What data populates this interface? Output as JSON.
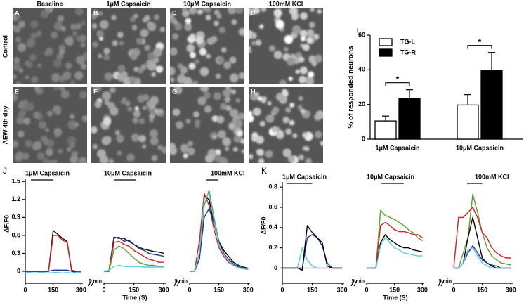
{
  "images": {
    "columns": [
      "Baseline",
      "1μM Capsaicin",
      "10μM Capsaicin",
      "100mM KCl"
    ],
    "rows": [
      "Control",
      "AEW 4th day"
    ],
    "panels": [
      "A",
      "B",
      "C",
      "D",
      "E",
      "F",
      "G",
      "H"
    ]
  },
  "chart_data": [
    {
      "type": "bar",
      "panel": "I",
      "categories": [
        "1μM Capsaicin",
        "10μM Capsaicin"
      ],
      "ylabel": "% of responded neurons",
      "ylim": [
        0,
        60
      ],
      "yticks": [
        0,
        20,
        40,
        60
      ],
      "legend": "top-left",
      "series": [
        {
          "name": "TG-L",
          "color": "#ffffff",
          "values": [
            10.5,
            19.7
          ],
          "errors": [
            2.8,
            6
          ]
        },
        {
          "name": "TG-R",
          "color": "#000000",
          "values": [
            23.5,
            39.5
          ],
          "errors": [
            5,
            10.5
          ]
        }
      ],
      "annotations": [
        "*",
        "*"
      ]
    },
    {
      "type": "line",
      "panel": "J",
      "ylabel": "ΔF/F0",
      "xlabel": "Time (S)",
      "ylim": [
        -0.2,
        1.55
      ],
      "yticks": [
        0,
        0.3,
        0.6,
        0.9,
        1.2,
        1.5
      ],
      "xlim": [
        0,
        310
      ],
      "xticks": [
        0,
        150,
        300
      ],
      "segments": [
        {
          "label": "1μM Capsaicin",
          "stimulus": [
            30,
            150
          ],
          "x": [
            0,
            25,
            50,
            75,
            100,
            125,
            150,
            175,
            200,
            225,
            250,
            275,
            300
          ],
          "series": [
            {
              "color": "#000000",
              "values": [
                0,
                0,
                0,
                0,
                0,
                0,
                0.68,
                0.62,
                0.55,
                0.5,
                0,
                -0.02,
                -0.02
              ]
            },
            {
              "color": "#d62020",
              "values": [
                0,
                0,
                0,
                0,
                0,
                0,
                0.6,
                0.6,
                0.52,
                0.48,
                0.02,
                0,
                0
              ]
            },
            {
              "color": "#1f3a8a",
              "values": [
                0,
                0,
                0,
                0,
                0,
                0,
                0.02,
                0.02,
                0.02,
                0.02,
                0,
                0,
                0
              ]
            },
            {
              "color": "#5bc8e0",
              "values": [
                -0.02,
                -0.02,
                -0.03,
                -0.02,
                -0.02,
                -0.03,
                -0.02,
                -0.02,
                -0.03,
                -0.02,
                -0.03,
                -0.02,
                -0.02
              ]
            }
          ]
        },
        {
          "label": "10μM Capsaicin",
          "scale_label": "5 min",
          "stimulus": [
            50,
            160
          ],
          "x": [
            0,
            25,
            50,
            75,
            100,
            125,
            150,
            175,
            200,
            225,
            250,
            275,
            300
          ],
          "series": [
            {
              "color": "#000000",
              "values": [
                0,
                0,
                0.57,
                0.55,
                0.55,
                0.5,
                0.45,
                0.4,
                0.37,
                0.35,
                0.33,
                0.32,
                0.3
              ]
            },
            {
              "color": "#1f3a8a",
              "values": [
                0,
                0,
                0.55,
                0.57,
                0.5,
                0.52,
                0.45,
                0.38,
                0.35,
                0.3,
                0.28,
                0.27,
                0.25
              ]
            },
            {
              "color": "#d62020",
              "values": [
                0,
                0,
                0.48,
                0.5,
                0.45,
                0.42,
                0.35,
                0.3,
                0.25,
                0.2,
                0.18,
                0.15,
                0.15
              ]
            },
            {
              "color": "#5aa02c",
              "values": [
                0,
                0,
                0.35,
                0.42,
                0.38,
                0.3,
                0.22,
                0.15,
                0.12,
                0.1,
                0.1,
                0.08,
                0.08
              ]
            },
            {
              "color": "#5bc8e0",
              "values": [
                0,
                0.02,
                0.08,
                0.1,
                0.08,
                0.08,
                0.08,
                0.08,
                0.07,
                0.07,
                0.07,
                0.07,
                0.07
              ]
            }
          ]
        },
        {
          "label": "100mM KCl",
          "scale_label": "5 min",
          "stimulus": [
            85,
            145
          ],
          "x": [
            0,
            25,
            50,
            75,
            100,
            125,
            150,
            175,
            200,
            225,
            250,
            275,
            300
          ],
          "series": [
            {
              "color": "#000000",
              "values": [
                0,
                0,
                0.3,
                1.25,
                1.2,
                0.8,
                0.5,
                0.35,
                0.25,
                0.15,
                0.1,
                0.07,
                0.05
              ]
            },
            {
              "color": "#d62020",
              "values": [
                0,
                0,
                0.5,
                1.3,
                1.1,
                0.7,
                0.4,
                0.25,
                0.15,
                0.1,
                0.07,
                0.05,
                0.04
              ]
            },
            {
              "color": "#5aa02c",
              "values": [
                0,
                0,
                0.2,
                1.1,
                1.35,
                0.9,
                0.5,
                0.3,
                0.2,
                0.12,
                0.08,
                0.05,
                0.04
              ]
            },
            {
              "color": "#1f3a8a",
              "values": [
                0,
                0,
                0.2,
                0.9,
                1.05,
                0.8,
                0.5,
                0.3,
                0.2,
                0.12,
                0.07,
                0.05,
                0.03
              ]
            },
            {
              "color": "#5bc8e0",
              "values": [
                0,
                0,
                0.3,
                1.2,
                1.3,
                0.85,
                0.45,
                0.28,
                0.18,
                0.1,
                0.06,
                0.04,
                0.03
              ]
            }
          ]
        }
      ]
    },
    {
      "type": "line",
      "panel": "K",
      "ylabel": "ΔF/F0",
      "xlabel": "Time (S)",
      "ylim": [
        -0.15,
        0.85
      ],
      "yticks": [
        0,
        0.2,
        0.4,
        0.6,
        0.8
      ],
      "xlim": [
        0,
        310
      ],
      "xticks": [
        0,
        150,
        300
      ],
      "segments": [
        {
          "label": "1μM Capsaicin",
          "stimulus": [
            20,
            150
          ],
          "x": [
            0,
            25,
            50,
            75,
            100,
            125,
            150,
            175,
            200,
            225,
            250,
            275,
            300
          ],
          "series": [
            {
              "color": "#e69a1a",
              "values": [
                0,
                0,
                0,
                0,
                0,
                0,
                0,
                0,
                0,
                0,
                0,
                0,
                0
              ]
            },
            {
              "color": "#5bc8e0",
              "values": [
                0,
                0,
                0,
                0,
                0.2,
                0.08,
                0.02,
                0,
                0,
                0,
                0,
                0,
                0
              ]
            },
            {
              "color": "#1f3a8a",
              "values": [
                0,
                0,
                0,
                0,
                0,
                0.3,
                0.33,
                0.3,
                0.22,
                0.05,
                0,
                0,
                0
              ]
            },
            {
              "color": "#000000",
              "values": [
                0,
                0,
                0,
                0,
                -0.02,
                0.42,
                0.35,
                0.3,
                0.25,
                0.02,
                0,
                0,
                0
              ]
            }
          ]
        },
        {
          "label": "10μM Capsaicin",
          "scale_label": "5 min",
          "stimulus": [
            80,
            200
          ],
          "x": [
            0,
            25,
            50,
            75,
            100,
            125,
            150,
            175,
            200,
            225,
            250,
            275,
            300
          ],
          "series": [
            {
              "color": "#5aa02c",
              "values": [
                0,
                0,
                0,
                0.57,
                0.52,
                0.5,
                0.48,
                0.45,
                0.42,
                0.38,
                0.35,
                0.3,
                0.27
              ]
            },
            {
              "color": "#d62020",
              "values": [
                0,
                0,
                0,
                0.42,
                0.45,
                0.42,
                0.38,
                0.36,
                0.36,
                0.35,
                0.33,
                0.33,
                0.3
              ]
            },
            {
              "color": "#000000",
              "values": [
                0,
                0,
                0,
                0.25,
                0.33,
                0.28,
                0.25,
                0.22,
                0.2,
                0.2,
                0.18,
                0.17,
                0.16
              ]
            },
            {
              "color": "#5bc8e0",
              "values": [
                0,
                0,
                0,
                0.22,
                0.3,
                0.25,
                0.2,
                0.18,
                0.15,
                0.14,
                0.13,
                0.12,
                0.12
              ]
            }
          ]
        },
        {
          "label": "100mM KCl",
          "scale_label": "5 min",
          "stimulus": [
            70,
            150
          ],
          "x": [
            0,
            25,
            50,
            75,
            100,
            125,
            150,
            175,
            200,
            225,
            250,
            275,
            300
          ],
          "series": [
            {
              "color": "#5aa02c",
              "values": [
                0,
                0,
                0.15,
                0.3,
                0.73,
                0.55,
                0.35,
                0.2,
                0.12,
                0.08,
                0.05,
                0.04,
                0.03
              ]
            },
            {
              "color": "#d62020",
              "values": [
                0,
                0.5,
                0.5,
                0.55,
                0.6,
                0.5,
                0.35,
                0.3,
                0.2,
                0.15,
                0.12,
                0.1,
                0.1
              ]
            },
            {
              "color": "#000000",
              "values": [
                0,
                0,
                0.05,
                0.3,
                0.5,
                0.3,
                0.1,
                0.05,
                0.02,
                0,
                0,
                0,
                0
              ]
            },
            {
              "color": "#1f3a8a",
              "values": [
                0,
                0,
                0.05,
                0.15,
                0.22,
                0.15,
                0.08,
                0.05,
                0.03,
                0.02,
                0,
                0,
                0
              ]
            },
            {
              "color": "#5bc8e0",
              "values": [
                0,
                0,
                0.05,
                0.18,
                0.2,
                0.12,
                0.05,
                0.02,
                0,
                0,
                0,
                0,
                0
              ]
            }
          ]
        }
      ]
    }
  ]
}
